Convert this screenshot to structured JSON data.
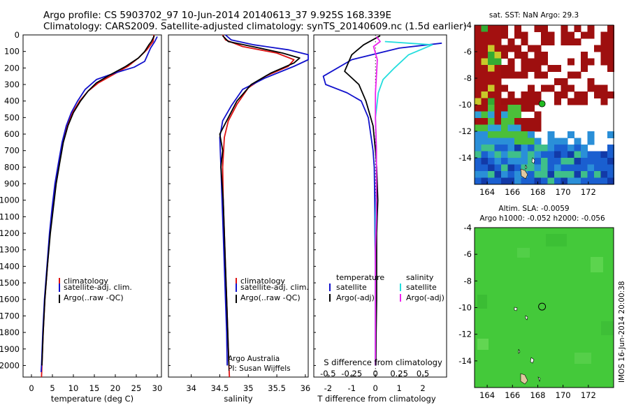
{
  "title_line1": "Argo profile: CS 5903702_97 10-Jun-2014 20140613_37 9.925S 168.339E",
  "title_line2": "Climatology: CARS2009. Satellite-adjusted climatology: synTS_20140609.nc (1.5d earlier)",
  "credit": "Argo Australia",
  "pi": "PI: Susan Wijffels",
  "imos_stamp": "IMOS 16-Jun-2014 20:00:38",
  "colors": {
    "climatology": "#dd1111",
    "satellite_clim": "#1111cc",
    "argo": "#000000",
    "salinity_satellite": "#22dddd",
    "salinity_argo": "#ee22ee",
    "float_marker": "#22bb22"
  },
  "legends": {
    "profile": [
      "climatology",
      "satellite-adj. clim.",
      "Argo(..raw -QC)"
    ],
    "diff_temperature_title": "temperature",
    "diff_temperature": [
      "satellite",
      "Argo(-adj)"
    ],
    "diff_salinity_title": "salinity",
    "diff_salinity": [
      "satellite",
      "Argo(-adj)"
    ]
  },
  "map_titles": {
    "sst": "sat. SST: NaN Argo: 29.3",
    "altim1": "Altim. SLA: -0.0059",
    "altim2": "Argo h1000: -0.052 h2000: -0.056"
  },
  "chart_data": [
    {
      "type": "line",
      "name": "temperature-profile",
      "xlabel": "temperature (deg C)",
      "ylabel": "",
      "xlim": [
        -2,
        31
      ],
      "ylim": [
        2070,
        0
      ],
      "xticks": [
        0,
        5,
        10,
        15,
        20,
        25,
        30
      ],
      "yticks": [
        0,
        100,
        200,
        300,
        400,
        500,
        600,
        700,
        800,
        900,
        1000,
        1100,
        1200,
        1300,
        1400,
        1500,
        1600,
        1700,
        1800,
        1900,
        2000
      ],
      "grid": false,
      "legend_position": "lower-middle",
      "series": [
        {
          "name": "climatology",
          "color": "#dd1111",
          "points": [
            [
              29.2,
              0
            ],
            [
              29,
              40
            ],
            [
              27.5,
              90
            ],
            [
              25.5,
              140
            ],
            [
              23,
              190
            ],
            [
              19.5,
              240
            ],
            [
              16,
              290
            ],
            [
              13.5,
              340
            ],
            [
              11.5,
              400
            ],
            [
              9.8,
              470
            ],
            [
              8.5,
              550
            ],
            [
              7.5,
              650
            ],
            [
              6.6,
              780
            ],
            [
              5.8,
              900
            ],
            [
              5,
              1050
            ],
            [
              4.4,
              1200
            ],
            [
              3.8,
              1400
            ],
            [
              3.2,
              1600
            ],
            [
              2.8,
              1800
            ],
            [
              2.5,
              2000
            ],
            [
              2.4,
              2070
            ]
          ]
        },
        {
          "name": "satellite-adj. clim.",
          "color": "#1111cc",
          "points": [
            [
              30,
              10
            ],
            [
              29.4,
              40
            ],
            [
              28.4,
              80
            ],
            [
              27,
              160
            ],
            [
              24.5,
              195
            ],
            [
              20,
              230
            ],
            [
              15.5,
              270
            ],
            [
              12.8,
              330
            ],
            [
              11,
              400
            ],
            [
              9.5,
              470
            ],
            [
              8.3,
              550
            ],
            [
              7.3,
              650
            ],
            [
              6.4,
              780
            ],
            [
              5.6,
              900
            ],
            [
              4.9,
              1050
            ],
            [
              4.3,
              1200
            ],
            [
              3.7,
              1400
            ],
            [
              3.1,
              1600
            ],
            [
              2.7,
              1800
            ],
            [
              2.4,
              2000
            ],
            [
              2.3,
              2040
            ]
          ]
        },
        {
          "name": "Argo(..raw -QC)",
          "color": "#000000",
          "points": [
            [
              29.3,
              5
            ],
            [
              28.6,
              40
            ],
            [
              28,
              60
            ],
            [
              27,
              100
            ],
            [
              25.5,
              140
            ],
            [
              22.5,
              190
            ],
            [
              18.5,
              245
            ],
            [
              15.5,
              290
            ],
            [
              13.5,
              340
            ],
            [
              11.7,
              400
            ],
            [
              10,
              470
            ],
            [
              8.7,
              550
            ],
            [
              7.6,
              650
            ],
            [
              6.7,
              780
            ],
            [
              5.9,
              900
            ],
            [
              5.2,
              1050
            ],
            [
              4.5,
              1200
            ],
            [
              3.8,
              1400
            ],
            [
              3.2,
              1600
            ],
            [
              2.8,
              1800
            ],
            [
              2.5,
              2000
            ]
          ]
        }
      ]
    },
    {
      "type": "line",
      "name": "salinity-profile",
      "xlabel": "salinity",
      "ylabel": "",
      "xlim": [
        33.6,
        36.05
      ],
      "ylim": [
        2070,
        0
      ],
      "xticks": [
        34,
        34.5,
        35,
        35.5,
        36
      ],
      "grid": false,
      "legend_position": "lower-right",
      "series": [
        {
          "name": "climatology",
          "color": "#dd1111",
          "points": [
            [
              34.55,
              0
            ],
            [
              34.6,
              30
            ],
            [
              34.9,
              70
            ],
            [
              35.5,
              110
            ],
            [
              35.8,
              150
            ],
            [
              35.7,
              190
            ],
            [
              35.3,
              250
            ],
            [
              35,
              320
            ],
            [
              34.8,
              420
            ],
            [
              34.65,
              520
            ],
            [
              34.58,
              620
            ],
            [
              34.55,
              800
            ],
            [
              34.56,
              1000
            ],
            [
              34.58,
              1200
            ],
            [
              34.6,
              1400
            ],
            [
              34.62,
              1600
            ],
            [
              34.64,
              1800
            ],
            [
              34.66,
              2000
            ],
            [
              34.67,
              2070
            ]
          ]
        },
        {
          "name": "satellite-adj. clim.",
          "color": "#1111cc",
          "points": [
            [
              34.6,
              0
            ],
            [
              34.7,
              30
            ],
            [
              35.1,
              60
            ],
            [
              35.7,
              90
            ],
            [
              36.1,
              120
            ],
            [
              36.05,
              150
            ],
            [
              35.8,
              190
            ],
            [
              35.3,
              260
            ],
            [
              34.9,
              330
            ],
            [
              34.7,
              430
            ],
            [
              34.55,
              520
            ],
            [
              34.5,
              620
            ],
            [
              34.52,
              800
            ],
            [
              34.54,
              1000
            ],
            [
              34.56,
              1200
            ],
            [
              34.58,
              1400
            ],
            [
              34.6,
              1600
            ],
            [
              34.62,
              1800
            ],
            [
              34.63,
              2000
            ]
          ]
        },
        {
          "name": "Argo(..raw -QC)",
          "color": "#000000",
          "points": [
            [
              34.55,
              5
            ],
            [
              34.65,
              40
            ],
            [
              35.2,
              80
            ],
            [
              35.6,
              110
            ],
            [
              35.9,
              140
            ],
            [
              35.8,
              170
            ],
            [
              35.4,
              230
            ],
            [
              35.05,
              300
            ],
            [
              34.8,
              400
            ],
            [
              34.65,
              500
            ],
            [
              34.5,
              600
            ],
            [
              34.55,
              700
            ],
            [
              34.52,
              800
            ],
            [
              34.56,
              1000
            ],
            [
              34.58,
              1200
            ],
            [
              34.6,
              1400
            ],
            [
              34.62,
              1600
            ],
            [
              34.64,
              1800
            ],
            [
              34.66,
              2000
            ]
          ]
        }
      ]
    },
    {
      "type": "line",
      "name": "difference-from-climatology",
      "xlabel": "T difference from climatology",
      "x2label": "S difference from climatology",
      "xlim": [
        -2.6,
        3.0
      ],
      "x2lim": [
        -0.65,
        0.75
      ],
      "ylim": [
        2070,
        0
      ],
      "xticks": [
        -2,
        -1,
        0,
        1,
        2
      ],
      "x2ticks": [
        -0.5,
        -0.25,
        0,
        0.25,
        0.5
      ],
      "grid": false,
      "legend_position": "lower-middle",
      "series": [
        {
          "name": "satellite",
          "quantity": "temperature",
          "color": "#1111cc",
          "points": [
            [
              2.8,
              50
            ],
            [
              1,
              80
            ],
            [
              -1,
              150
            ],
            [
              -2.2,
              250
            ],
            [
              -2.1,
              300
            ],
            [
              -1.2,
              350
            ],
            [
              -0.6,
              400
            ],
            [
              -0.3,
              500
            ],
            [
              -0.2,
              600
            ],
            [
              -0.1,
              700
            ],
            [
              -0.05,
              800
            ],
            [
              -0.03,
              1000
            ],
            [
              -0.02,
              1200
            ],
            [
              0,
              1400
            ],
            [
              0,
              1600
            ],
            [
              0,
              1800
            ],
            [
              0,
              2000
            ]
          ]
        },
        {
          "name": "Argo(-adj)",
          "quantity": "temperature",
          "color": "#000000",
          "points": [
            [
              0.2,
              5
            ],
            [
              -0.5,
              60
            ],
            [
              -1,
              120
            ],
            [
              -1.3,
              220
            ],
            [
              -0.7,
              300
            ],
            [
              -0.4,
              400
            ],
            [
              -0.3,
              450
            ],
            [
              -0.1,
              550
            ],
            [
              0,
              700
            ],
            [
              0.05,
              800
            ],
            [
              0.1,
              1000
            ],
            [
              0.05,
              1200
            ],
            [
              0.05,
              1400
            ],
            [
              0.05,
              1600
            ],
            [
              0.03,
              1800
            ],
            [
              0.02,
              2000
            ]
          ]
        },
        {
          "name": "satellite",
          "quantity": "salinity",
          "color": "#22dddd",
          "points": [
            [
              0.1,
              40
            ],
            [
              0.6,
              60
            ],
            [
              0.35,
              120
            ],
            [
              0.2,
              200
            ],
            [
              0.08,
              270
            ],
            [
              0.03,
              350
            ],
            [
              0,
              500
            ],
            [
              0.01,
              700
            ],
            [
              0.01,
              900
            ],
            [
              0,
              1100
            ],
            [
              0,
              1300
            ],
            [
              0,
              1500
            ],
            [
              0,
              1700
            ],
            [
              0,
              2000
            ]
          ]
        },
        {
          "name": "Argo(-adj)",
          "quantity": "salinity",
          "color": "#ee22ee",
          "points": [
            [
              0.01,
              10
            ],
            [
              0.05,
              40
            ],
            [
              -0.02,
              70
            ],
            [
              0.02,
              150
            ],
            [
              0.01,
              250
            ],
            [
              0,
              350
            ],
            [
              0,
              500
            ],
            [
              0.01,
              700
            ],
            [
              0.01,
              900
            ],
            [
              0.01,
              1100
            ],
            [
              0,
              1300
            ],
            [
              0,
              1500
            ],
            [
              0,
              1700
            ],
            [
              0,
              2000
            ]
          ]
        }
      ]
    },
    {
      "type": "heatmap",
      "name": "sst-map",
      "title": "sat. SST: NaN Argo: 29.3",
      "xlim": [
        163,
        174
      ],
      "ylim": [
        -16,
        -4
      ],
      "xticks": [
        164,
        166,
        168,
        170,
        172
      ],
      "yticks": [
        -4,
        -6,
        -8,
        -10,
        -12,
        -14
      ],
      "float_position": [
        168.339,
        -9.925
      ]
    },
    {
      "type": "heatmap",
      "name": "altimetry-map",
      "title": "Altim. SLA: -0.0059",
      "xlim": [
        163,
        174
      ],
      "ylim": [
        -16,
        -4
      ],
      "xticks": [
        164,
        166,
        168,
        170,
        172
      ],
      "yticks": [
        -4,
        -6,
        -8,
        -10,
        -12,
        -14
      ],
      "float_position": [
        168.339,
        -9.925
      ]
    }
  ]
}
